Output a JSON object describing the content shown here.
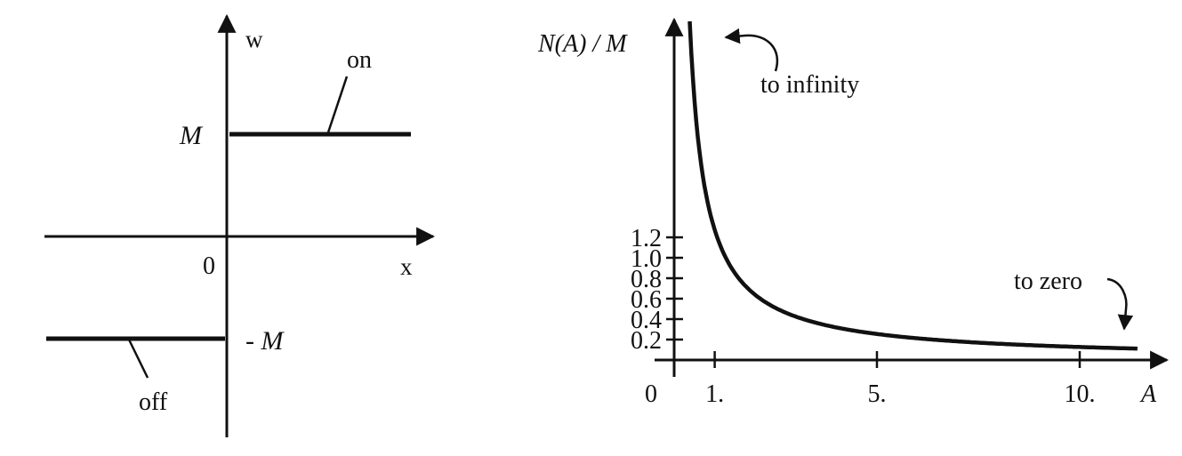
{
  "relay": {
    "w_label": "w",
    "x_label": "x",
    "origin_label": "0",
    "plus_M_label": "M",
    "minus_M_label": "- M",
    "on_label": "on",
    "off_label": "off"
  },
  "describing": {
    "y_axis_label": "N(A) / M",
    "x_axis_label": "A",
    "origin_label": "0",
    "to_infinity_label": "to infinity",
    "to_zero_label": "to zero",
    "y_ticks": [
      {
        "value": 0.2,
        "label": "0.2"
      },
      {
        "value": 0.4,
        "label": "0.4"
      },
      {
        "value": 0.6,
        "label": "0.6"
      },
      {
        "value": 0.8,
        "label": "0.8"
      },
      {
        "value": 1.0,
        "label": "1.0"
      },
      {
        "value": 1.2,
        "label": "1.2"
      }
    ],
    "x_ticks": [
      {
        "value": 1,
        "label": "1."
      },
      {
        "value": 5,
        "label": "5."
      },
      {
        "value": 10,
        "label": "10."
      }
    ]
  }
}
